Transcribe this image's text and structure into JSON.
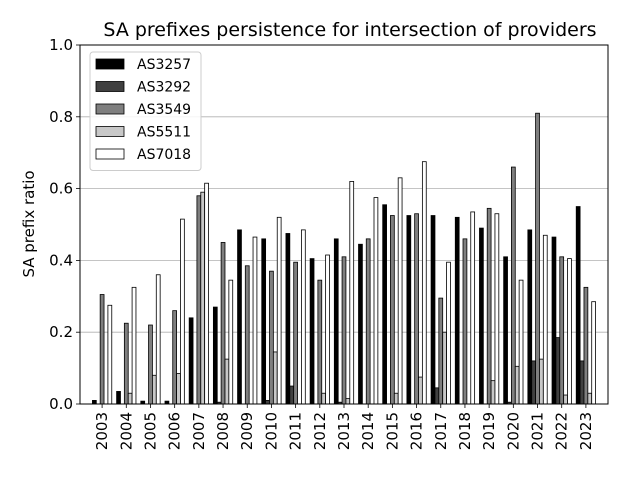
{
  "chart_data": {
    "type": "bar",
    "title": "SA prefixes persistence for intersection of providers",
    "xlabel": "",
    "ylabel": "SA prefix ratio",
    "ylim": [
      0,
      1.0
    ],
    "yticks": [
      "0.0",
      "0.2",
      "0.4",
      "0.6",
      "0.8",
      "1.0"
    ],
    "grid": "horizontal",
    "legend_position": "top-left",
    "categories": [
      "2003",
      "2004",
      "2005",
      "2006",
      "2007",
      "2008",
      "2009",
      "2010",
      "2011",
      "2012",
      "2013",
      "2014",
      "2015",
      "2016",
      "2017",
      "2018",
      "2019",
      "2020",
      "2021",
      "2022",
      "2023"
    ],
    "series": [
      {
        "name": "AS3257",
        "color": "#000000",
        "values": [
          0.01,
          0.035,
          0.008,
          0.008,
          0.24,
          0.27,
          0.485,
          0.46,
          0.475,
          0.405,
          0.46,
          0.445,
          0.555,
          0.525,
          0.525,
          0.52,
          0.49,
          0.41,
          0.485,
          0.465,
          0.55
        ]
      },
      {
        "name": "AS3292",
        "color": "#404040",
        "values": [
          0.0,
          0.0,
          0.0,
          0.0,
          0.0,
          0.005,
          0.0,
          0.01,
          0.05,
          0.0,
          0.005,
          0.0,
          0.0,
          0.0,
          0.045,
          0.0,
          0.0,
          0.005,
          0.12,
          0.185,
          0.12
        ]
      },
      {
        "name": "AS3549",
        "color": "#7f7f7f",
        "values": [
          0.305,
          0.225,
          0.22,
          0.26,
          0.58,
          0.45,
          0.385,
          0.37,
          0.395,
          0.345,
          0.41,
          0.46,
          0.525,
          0.53,
          0.295,
          0.46,
          0.545,
          0.66,
          0.81,
          0.41,
          0.325
        ]
      },
      {
        "name": "AS5511",
        "color": "#c8c8c8",
        "values": [
          0.0,
          0.03,
          0.08,
          0.085,
          0.59,
          0.125,
          0.0,
          0.145,
          0.0,
          0.03,
          0.015,
          0.0,
          0.03,
          0.075,
          0.2,
          0.0,
          0.065,
          0.105,
          0.125,
          0.025,
          0.03
        ]
      },
      {
        "name": "AS7018",
        "color": "#ffffff",
        "values": [
          0.275,
          0.325,
          0.36,
          0.515,
          0.615,
          0.345,
          0.465,
          0.52,
          0.485,
          0.415,
          0.62,
          0.575,
          0.63,
          0.675,
          0.395,
          0.535,
          0.53,
          0.345,
          0.47,
          0.405,
          0.285
        ]
      }
    ]
  }
}
